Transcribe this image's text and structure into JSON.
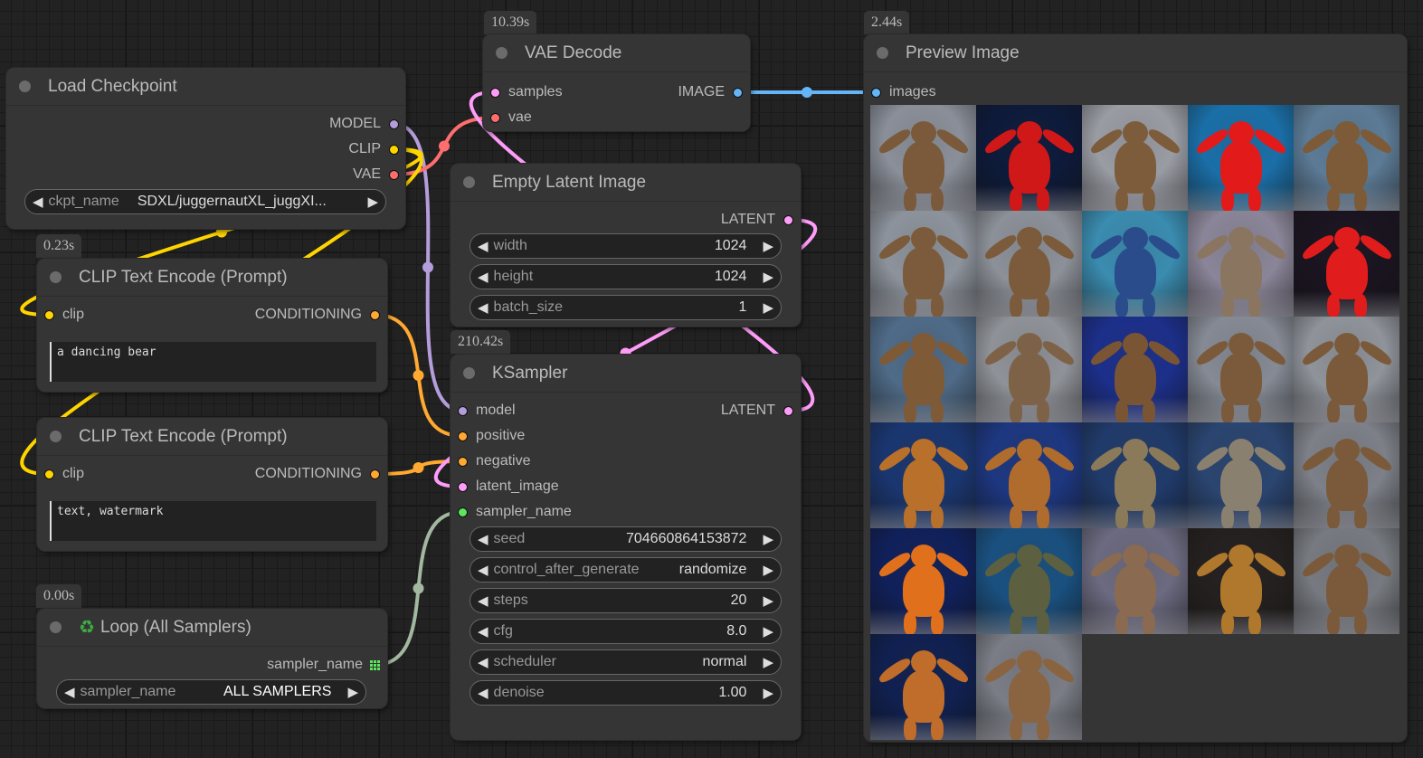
{
  "colors": {
    "model": "#b39ddb",
    "clip": "#ffd500",
    "vae": "#ff6e6e",
    "conditioning": "#ffa931",
    "latent": "#ff9cf9",
    "image": "#64b5f6",
    "sampler": "#a3b8a0",
    "int_slot": "#5ce65c"
  },
  "load_checkpoint": {
    "title": "Load Checkpoint",
    "outputs": [
      "MODEL",
      "CLIP",
      "VAE"
    ],
    "widget": {
      "label": "ckpt_name",
      "value": "SDXL/juggernautXL_juggXI..."
    }
  },
  "clip1": {
    "time": "0.23s",
    "title": "CLIP Text Encode (Prompt)",
    "input": "clip",
    "output": "CONDITIONING",
    "text": "a dancing bear"
  },
  "clip2": {
    "title": "CLIP Text Encode (Prompt)",
    "input": "clip",
    "output": "CONDITIONING",
    "text": "text, watermark"
  },
  "loop": {
    "time": "0.00s",
    "icon": "recycle-icon",
    "title": "Loop (All Samplers)",
    "output": "sampler_name",
    "widget": {
      "label": "sampler_name",
      "value": "ALL SAMPLERS"
    }
  },
  "vae_decode": {
    "time": "10.39s",
    "title": "VAE Decode",
    "inputs": [
      "samples",
      "vae"
    ],
    "output": "IMAGE"
  },
  "empty_latent": {
    "title": "Empty Latent Image",
    "output": "LATENT",
    "widgets": [
      {
        "label": "width",
        "value": "1024"
      },
      {
        "label": "height",
        "value": "1024"
      },
      {
        "label": "batch_size",
        "value": "1"
      }
    ]
  },
  "ksampler": {
    "time": "210.42s",
    "title": "KSampler",
    "inputs": [
      "model",
      "positive",
      "negative",
      "latent_image",
      "sampler_name"
    ],
    "output": "LATENT",
    "widgets": [
      {
        "label": "seed",
        "value": "704660864153872"
      },
      {
        "label": "control_after_generate",
        "value": "randomize"
      },
      {
        "label": "steps",
        "value": "20"
      },
      {
        "label": "cfg",
        "value": "8.0"
      },
      {
        "label": "scheduler",
        "value": "normal"
      },
      {
        "label": "denoise",
        "value": "1.00"
      }
    ]
  },
  "preview": {
    "time": "2.44s",
    "title": "Preview Image",
    "input": "images",
    "images": [
      {
        "bg": "#8a8f99",
        "bear": "#7a5a3a"
      },
      {
        "bg": "#0d1a3a",
        "bear": "#d01818"
      },
      {
        "bg": "#9a9ca4",
        "bear": "#7d5c3c"
      },
      {
        "bg": "#1a6fa8",
        "bear": "#e21a1a"
      },
      {
        "bg": "#5c7b96",
        "bear": "#7d5a38"
      },
      {
        "bg": "#8d939c",
        "bear": "#7b5b3b"
      },
      {
        "bg": "#8c9098",
        "bear": "#7b5b3b"
      },
      {
        "bg": "#3a8cb0",
        "bear": "#2a4c8a"
      },
      {
        "bg": "#8a8598",
        "bear": "#8a7560"
      },
      {
        "bg": "#1a1420",
        "bear": "#e01c1c"
      },
      {
        "bg": "#4f6b88",
        "bear": "#7e5a36"
      },
      {
        "bg": "#8f9298",
        "bear": "#7e6248"
      },
      {
        "bg": "#1c2f8a",
        "bear": "#7a5534"
      },
      {
        "bg": "#858a94",
        "bear": "#7a5a3a"
      },
      {
        "bg": "#8f939a",
        "bear": "#7a5a3a"
      },
      {
        "bg": "#1a3670",
        "bear": "#b8702a"
      },
      {
        "bg": "#1d3780",
        "bear": "#b06c2c"
      },
      {
        "bg": "#203a6a",
        "bear": "#8a7a5a"
      },
      {
        "bg": "#2a4570",
        "bear": "#8a8070"
      },
      {
        "bg": "#7d8088",
        "bear": "#7a5a3a"
      },
      {
        "bg": "#10205a",
        "bear": "#e0701c"
      },
      {
        "bg": "#1a5080",
        "bear": "#5c6040"
      },
      {
        "bg": "#6c6a80",
        "bear": "#8a6a50"
      },
      {
        "bg": "#252020",
        "bear": "#b0782c"
      },
      {
        "bg": "#777a80",
        "bear": "#7a5a3a"
      },
      {
        "bg": "#102050",
        "bear": "#c06c2a"
      },
      {
        "bg": "#7a7d86",
        "bear": "#8a6440"
      }
    ]
  }
}
